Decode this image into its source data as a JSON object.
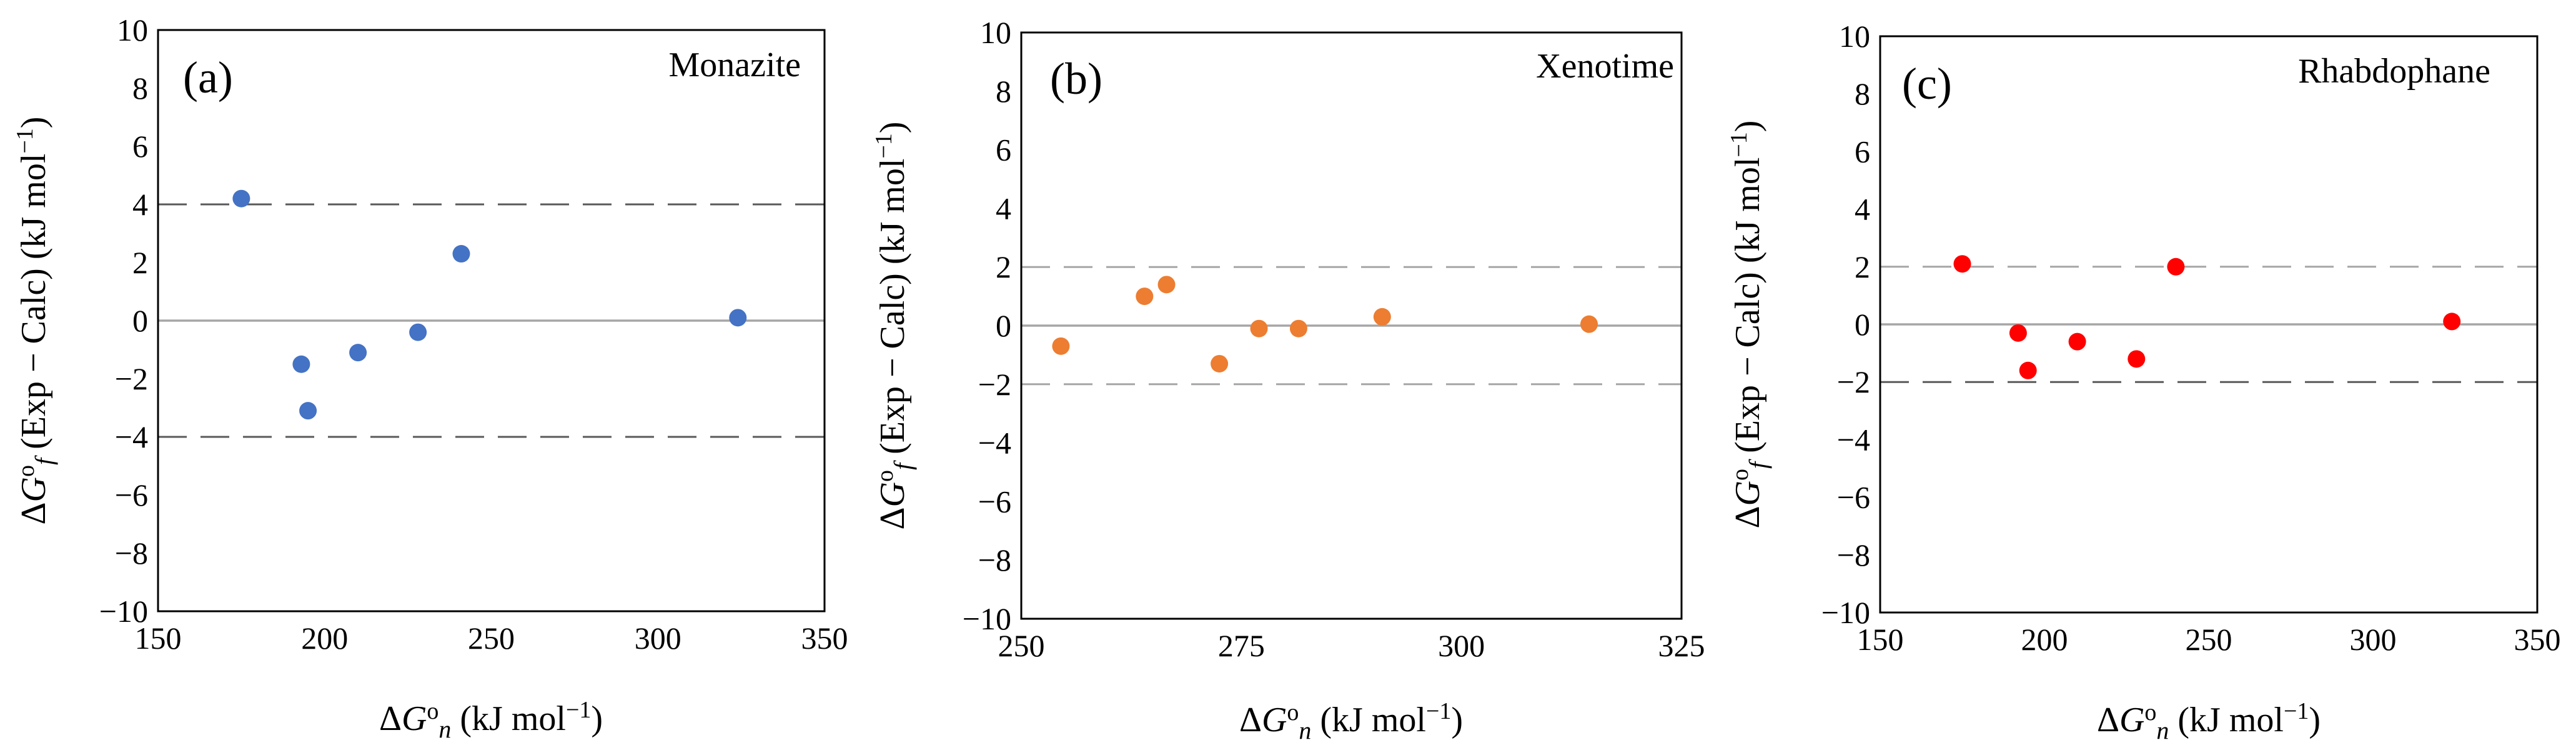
{
  "chart_data": [
    {
      "type": "scatter",
      "panel_label": "(a)",
      "title": "Monazite",
      "xlabel": "ΔGon (kJ mol−1)",
      "ylabel": "ΔGof (Exp − Calc) (kJ mol−1)",
      "xlim": [
        150,
        350
      ],
      "ylim": [
        -10,
        10
      ],
      "xticks": [
        "150",
        "200",
        "250",
        "300",
        "350"
      ],
      "yticks": [
        "−10",
        "−8",
        "−6",
        "−4",
        "−2",
        "0",
        "2",
        "4",
        "6",
        "8",
        "10"
      ],
      "series": [
        {
          "name": "Monazite",
          "color": "#4472c4",
          "points": [
            {
              "x": 175,
              "y": 4.2
            },
            {
              "x": 193,
              "y": -1.5
            },
            {
              "x": 195,
              "y": -3.1
            },
            {
              "x": 210,
              "y": -1.1
            },
            {
              "x": 228,
              "y": -0.4
            },
            {
              "x": 241,
              "y": 2.3
            },
            {
              "x": 324,
              "y": 0.1
            }
          ]
        }
      ],
      "reference_lines": [
        {
          "y": 0,
          "style": "solid",
          "color": "#a6a6a6"
        },
        {
          "y": 4,
          "style": "dashed",
          "color": "#595959"
        },
        {
          "y": -4,
          "style": "dashed",
          "color": "#595959"
        }
      ]
    },
    {
      "type": "scatter",
      "panel_label": "(b)",
      "title": "Xenotime",
      "xlabel": "ΔGon (kJ mol−1)",
      "ylabel": "ΔGof (Exp − Calc) (kJ mol−1)",
      "xlim": [
        250,
        325
      ],
      "ylim": [
        -10,
        10
      ],
      "xticks": [
        "250",
        "275",
        "300",
        "325"
      ],
      "yticks": [
        "−10",
        "−8",
        "−6",
        "−4",
        "−2",
        "0",
        "2",
        "4",
        "6",
        "8",
        "10"
      ],
      "series": [
        {
          "name": "Xenotime",
          "color": "#ed7d31",
          "points": [
            {
              "x": 254.5,
              "y": -0.7
            },
            {
              "x": 264,
              "y": 1.0
            },
            {
              "x": 266.5,
              "y": 1.4
            },
            {
              "x": 272.5,
              "y": -1.3
            },
            {
              "x": 277,
              "y": -0.1
            },
            {
              "x": 281.5,
              "y": -0.1
            },
            {
              "x": 291,
              "y": 0.3
            },
            {
              "x": 314.5,
              "y": 0.05
            }
          ]
        }
      ],
      "reference_lines": [
        {
          "y": 0,
          "style": "solid",
          "color": "#a6a6a6"
        },
        {
          "y": 2,
          "style": "dashed",
          "color": "#a6a6a6"
        },
        {
          "y": -2,
          "style": "dashed",
          "color": "#a6a6a6"
        }
      ]
    },
    {
      "type": "scatter",
      "panel_label": "(c)",
      "title": "Rhabdophane",
      "xlabel": "ΔGon (kJ mol−1)",
      "ylabel": "ΔGof (Exp − Calc) (kJ mol−1)",
      "xlim": [
        150,
        350
      ],
      "ylim": [
        -10,
        10
      ],
      "xticks": [
        "150",
        "200",
        "250",
        "300",
        "350"
      ],
      "yticks": [
        "−10",
        "−8",
        "−6",
        "−4",
        "−2",
        "0",
        "2",
        "4",
        "6",
        "8",
        "10"
      ],
      "series": [
        {
          "name": "Rhabdophane",
          "color": "#ff0000",
          "points": [
            {
              "x": 175,
              "y": 2.1
            },
            {
              "x": 192,
              "y": -0.3
            },
            {
              "x": 195,
              "y": -1.6
            },
            {
              "x": 210,
              "y": -0.6
            },
            {
              "x": 228,
              "y": -1.2
            },
            {
              "x": 240,
              "y": 2.0
            },
            {
              "x": 324,
              "y": 0.1
            }
          ]
        }
      ],
      "reference_lines": [
        {
          "y": 0,
          "style": "solid",
          "color": "#a6a6a6"
        },
        {
          "y": 2,
          "style": "dashed",
          "color": "#a6a6a6"
        },
        {
          "y": -2,
          "style": "dashed",
          "color": "#595959"
        }
      ]
    }
  ]
}
